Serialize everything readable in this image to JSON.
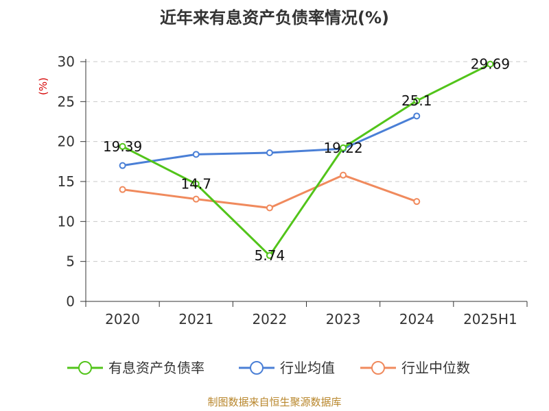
{
  "chart_data": {
    "type": "line",
    "title": "近年来有息资产负债率情况(%)",
    "ylabel": "(%)",
    "xlabel": "",
    "categories": [
      "2020",
      "2021",
      "2022",
      "2023",
      "2024",
      "2025H1"
    ],
    "ylim": [
      0,
      30
    ],
    "yticks": [
      0,
      5,
      10,
      15,
      20,
      25,
      30
    ],
    "grid": true,
    "legend_position": "bottom",
    "series": [
      {
        "name": "有息资产负债率",
        "color": "#52c41a",
        "values": [
          19.39,
          14.7,
          5.74,
          19.22,
          25.1,
          29.69
        ],
        "labels": [
          "19.39",
          "14.7",
          "5.74",
          "19.22",
          "25.1",
          "29.69"
        ]
      },
      {
        "name": "行业均值",
        "color": "#4a7fd6",
        "values": [
          17.0,
          18.4,
          18.6,
          19.1,
          23.2,
          null
        ]
      },
      {
        "name": "行业中位数",
        "color": "#f08a5d",
        "values": [
          14.0,
          12.8,
          11.7,
          15.8,
          12.5,
          null
        ]
      }
    ],
    "source": "制图数据来自恒生聚源数据库"
  }
}
